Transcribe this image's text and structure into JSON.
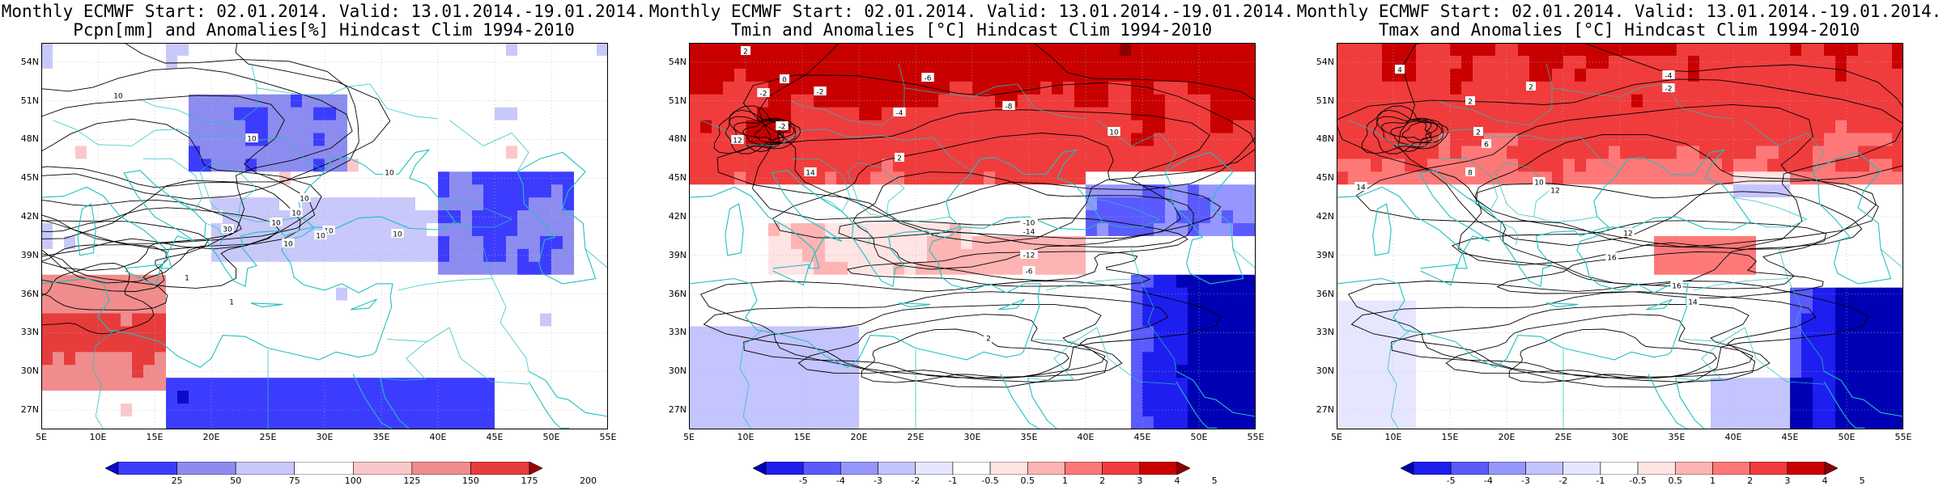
{
  "panels": [
    {
      "id": "pcpn",
      "title1": "Monthly ECMWF Start: 02.01.2014. Valid: 13.01.2014.-19.01.2014.",
      "title2": "Pcpn[mm] and Anomalies[%] Hindcast Clim 1994-2010",
      "colorbar_labels": [
        "25",
        "50",
        "75",
        "100",
        "125",
        "150",
        "175",
        "200"
      ],
      "contour_labels": [
        "10",
        "10",
        "10",
        "10",
        "10",
        "10",
        "10",
        "30",
        "10",
        "10",
        "10",
        "1",
        "1"
      ],
      "field": "precip"
    },
    {
      "id": "tmin",
      "title1": "Monthly ECMWF Start: 02.01.2014. Valid: 13.01.2014.-19.01.2014.",
      "title2": "Tmin and Anomalies [°C] Hindcast Clim 1994-2010",
      "colorbar_labels": [
        "-5",
        "-4",
        "-3",
        "-2",
        "-1",
        "-0.5",
        "0.5",
        "1",
        "2",
        "3",
        "4",
        "5"
      ],
      "contour_labels": [
        "2",
        "0",
        "-2",
        "-2",
        "-6",
        "-8",
        "-4",
        "2",
        "-2",
        "14",
        "12",
        "10",
        "-10",
        "-14",
        "-12",
        "-6",
        "2"
      ],
      "field": "tmin"
    },
    {
      "id": "tmax",
      "title1": "Monthly ECMWF Start: 02.01.2014. Valid: 13.01.2014.-19.01.2014.",
      "title2": "Tmax and Anomalies [°C] Hindcast Clim 1994-2010",
      "colorbar_labels": [
        "-5",
        "-4",
        "-3",
        "-2",
        "-1",
        "-0.5",
        "0.5",
        "1",
        "2",
        "3",
        "4",
        "5"
      ],
      "contour_labels": [
        "4",
        "2",
        "2",
        "-4",
        "-2",
        "2",
        "6",
        "8",
        "10",
        "12",
        "14",
        "16",
        "12",
        "16",
        "14"
      ],
      "field": "tmax"
    }
  ],
  "lat_labels": [
    "54N",
    "51N",
    "48N",
    "45N",
    "42N",
    "39N",
    "36N",
    "33N",
    "30N",
    "27N"
  ],
  "lon_labels": [
    "5E",
    "10E",
    "15E",
    "20E",
    "25E",
    "30E",
    "35E",
    "40E",
    "45E",
    "50E",
    "55E"
  ],
  "colors": {
    "precip_scale": [
      "#0a0ac8",
      "#3c3cff",
      "#8c8cf0",
      "#c8c8fa",
      "#ffffff",
      "#fac8c8",
      "#f08c8c",
      "#e63c3c",
      "#a00000"
    ],
    "temp_scale": [
      "#0000b4",
      "#1e1ef0",
      "#5a5aff",
      "#9696ff",
      "#c4c4ff",
      "#e6e6ff",
      "#ffffff",
      "#ffe4e4",
      "#ffb4b4",
      "#ff7878",
      "#f03c3c",
      "#c80000",
      "#8c0000"
    ],
    "coastline": "#20c0c0",
    "contour": "#000000"
  }
}
